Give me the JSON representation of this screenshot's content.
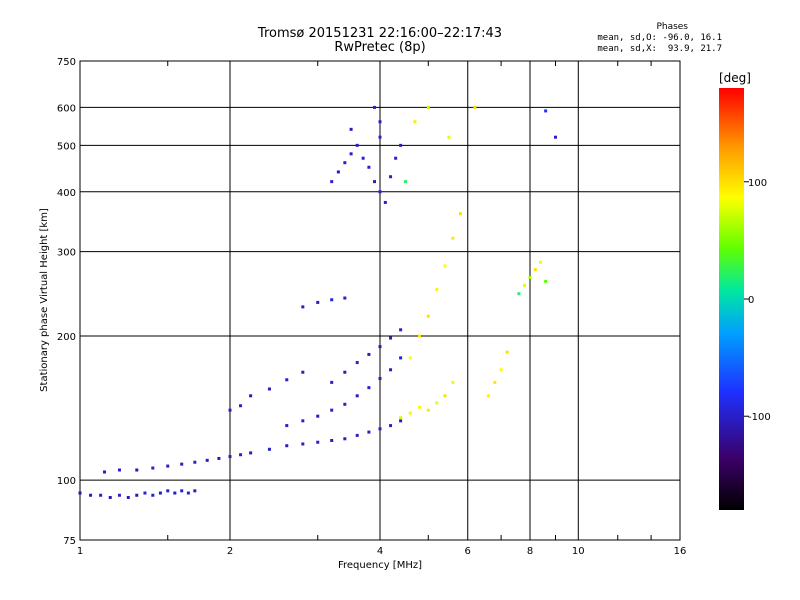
{
  "header": {
    "title_line1": "Tromsø 20151231 22:16:00–22:17:43",
    "title_line2": "RwPretec (8p)",
    "stats_heading": "Phases",
    "stats_o": "mean, sd,O: -96.0, 16.1",
    "stats_x": "mean, sd,X:  93.9, 21.7"
  },
  "colorbar": {
    "label": "[deg]",
    "ticks": [
      {
        "value": 100,
        "label": "100"
      },
      {
        "value": 0,
        "label": "0"
      },
      {
        "value": -100,
        "label": "-100"
      }
    ],
    "range": [
      -180,
      180
    ]
  },
  "chart_data": {
    "type": "scatter",
    "title": "Tromsø 20151231 22:16:00–22:17:43",
    "subtitle": "RwPretec (8p)",
    "xlabel": "Frequency [MHz]",
    "ylabel": "Stationary phase Virtual Height [km]",
    "x_scale": "log",
    "y_scale": "log",
    "xlim": [
      1,
      16
    ],
    "ylim": [
      75,
      750
    ],
    "x_ticks": [
      {
        "value": 1,
        "label": "1"
      },
      {
        "value": 2,
        "label": "2"
      },
      {
        "value": 4,
        "label": "4"
      },
      {
        "value": 6,
        "label": "6"
      },
      {
        "value": 8,
        "label": "8"
      },
      {
        "value": 10,
        "label": "10"
      },
      {
        "value": 16,
        "label": "16"
      }
    ],
    "y_ticks": [
      {
        "value": 75,
        "label": "75"
      },
      {
        "value": 100,
        "label": "100"
      },
      {
        "value": 200,
        "label": "200"
      },
      {
        "value": 300,
        "label": "300"
      },
      {
        "value": 400,
        "label": "400"
      },
      {
        "value": 500,
        "label": "500"
      },
      {
        "value": 600,
        "label": "600"
      },
      {
        "value": 750,
        "label": "750"
      }
    ],
    "x_grid": [
      2,
      4,
      6,
      8,
      10
    ],
    "y_grid": [
      100,
      200,
      300,
      400,
      500,
      600
    ],
    "grid": true,
    "series": [
      {
        "points": [
          [
            1.0,
            94,
            -110
          ],
          [
            1.05,
            93,
            -105
          ],
          [
            1.1,
            93,
            -100
          ],
          [
            1.15,
            92,
            -108
          ],
          [
            1.2,
            93,
            -96
          ],
          [
            1.25,
            92,
            -102
          ],
          [
            1.3,
            93,
            -110
          ],
          [
            1.35,
            94,
            -95
          ],
          [
            1.4,
            93,
            -100
          ],
          [
            1.45,
            94,
            -104
          ],
          [
            1.5,
            95,
            -98
          ],
          [
            1.55,
            94,
            -106
          ],
          [
            1.6,
            95,
            -100
          ],
          [
            1.65,
            94,
            -96
          ],
          [
            1.7,
            95,
            -102
          ]
        ]
      },
      {
        "points": [
          [
            1.12,
            104,
            -105
          ],
          [
            1.2,
            105,
            -100
          ],
          [
            1.3,
            105,
            -110
          ],
          [
            1.4,
            106,
            -98
          ],
          [
            1.5,
            107,
            -104
          ],
          [
            1.6,
            108,
            -100
          ],
          [
            1.7,
            109,
            -96
          ],
          [
            1.8,
            110,
            -102
          ],
          [
            1.9,
            111,
            -108
          ],
          [
            2.0,
            112,
            -100
          ],
          [
            2.1,
            113,
            -96
          ],
          [
            2.2,
            114,
            -104
          ],
          [
            2.4,
            116,
            -100
          ],
          [
            2.6,
            118,
            -102
          ],
          [
            2.8,
            119,
            -98
          ],
          [
            3.0,
            120,
            -100
          ],
          [
            3.2,
            121,
            -104
          ],
          [
            3.4,
            122,
            -98
          ],
          [
            3.6,
            124,
            -100
          ],
          [
            3.8,
            126,
            -102
          ],
          [
            4.0,
            128,
            -96
          ],
          [
            4.2,
            130,
            -100
          ],
          [
            4.4,
            133,
            -104
          ]
        ]
      },
      {
        "points": [
          [
            2.6,
            130,
            -100
          ],
          [
            2.8,
            133,
            -96
          ],
          [
            3.0,
            136,
            -104
          ],
          [
            3.2,
            140,
            -100
          ],
          [
            3.4,
            144,
            -98
          ],
          [
            3.6,
            150,
            -102
          ],
          [
            3.8,
            156,
            -96
          ],
          [
            4.0,
            163,
            -100
          ],
          [
            4.2,
            170,
            -104
          ],
          [
            4.4,
            180,
            -98
          ]
        ]
      },
      {
        "points": [
          [
            3.2,
            160,
            -100
          ],
          [
            3.4,
            168,
            -104
          ],
          [
            3.6,
            176,
            -96
          ],
          [
            3.8,
            183,
            -100
          ],
          [
            4.0,
            190,
            -102
          ],
          [
            4.2,
            198,
            -98
          ],
          [
            4.4,
            206,
            -100
          ]
        ]
      },
      {
        "points": [
          [
            2.0,
            140,
            -100
          ],
          [
            2.1,
            143,
            -96
          ],
          [
            2.2,
            150,
            -104
          ],
          [
            2.4,
            155,
            -100
          ],
          [
            2.6,
            162,
            -98
          ],
          [
            2.8,
            168,
            -100
          ]
        ]
      },
      {
        "points": [
          [
            2.8,
            230,
            -100
          ],
          [
            3.0,
            235,
            -104
          ],
          [
            3.2,
            238,
            -96
          ],
          [
            3.4,
            240,
            -100
          ]
        ]
      },
      {
        "points": [
          [
            4.4,
            135,
            75
          ],
          [
            4.6,
            138,
            90
          ],
          [
            4.8,
            142,
            85
          ],
          [
            5.0,
            140,
            95
          ],
          [
            5.2,
            145,
            80
          ],
          [
            5.4,
            150,
            100
          ],
          [
            5.6,
            160,
            90
          ]
        ]
      },
      {
        "points": [
          [
            4.6,
            180,
            85
          ],
          [
            4.8,
            200,
            95
          ],
          [
            5.0,
            220,
            100
          ],
          [
            5.2,
            250,
            90
          ],
          [
            5.4,
            280,
            88
          ],
          [
            5.6,
            320,
            95
          ],
          [
            5.8,
            360,
            100
          ]
        ]
      },
      {
        "points": [
          [
            6.6,
            150,
            92
          ],
          [
            6.8,
            160,
            96
          ],
          [
            7.0,
            170,
            88
          ],
          [
            7.2,
            185,
            100
          ]
        ]
      },
      {
        "points": [
          [
            7.6,
            245,
            20
          ],
          [
            7.8,
            255,
            80
          ],
          [
            8.0,
            265,
            60
          ],
          [
            8.2,
            275,
            100
          ],
          [
            8.4,
            285,
            90
          ],
          [
            8.6,
            260,
            40
          ]
        ]
      },
      {
        "points": [
          [
            3.2,
            420,
            -100
          ],
          [
            3.3,
            440,
            -104
          ],
          [
            3.4,
            460,
            -96
          ],
          [
            3.5,
            480,
            -100
          ],
          [
            3.6,
            500,
            -102
          ],
          [
            3.7,
            470,
            -98
          ],
          [
            3.8,
            450,
            -100
          ],
          [
            3.9,
            420,
            -104
          ],
          [
            4.0,
            400,
            -96
          ],
          [
            4.1,
            380,
            -100
          ],
          [
            4.2,
            430,
            -98
          ],
          [
            4.3,
            470,
            -100
          ],
          [
            4.4,
            500,
            -102
          ]
        ]
      },
      {
        "points": [
          [
            4.0,
            560,
            -100
          ],
          [
            4.0,
            520,
            -96
          ],
          [
            3.5,
            540,
            -104
          ],
          [
            3.9,
            600,
            -100
          ],
          [
            4.5,
            420,
            20
          ],
          [
            4.7,
            560,
            95
          ],
          [
            5.0,
            600,
            70
          ],
          [
            5.5,
            520,
            80
          ],
          [
            6.2,
            600,
            100
          ],
          [
            8.6,
            590,
            -80
          ],
          [
            9.0,
            520,
            -100
          ]
        ]
      }
    ]
  }
}
